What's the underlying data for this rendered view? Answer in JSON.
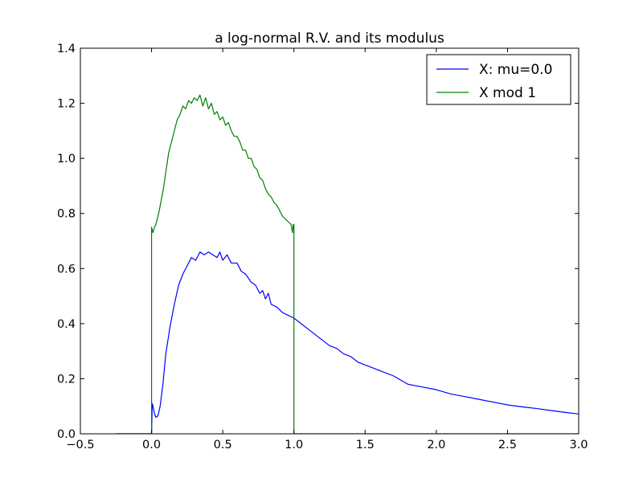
{
  "chart_data": {
    "type": "line",
    "title": "a log-normal R.V. and its modulus",
    "xlabel": "",
    "ylabel": "",
    "xlim": [
      -0.5,
      3.0
    ],
    "ylim": [
      0.0,
      1.4
    ],
    "xticks": [
      -0.5,
      0.0,
      0.5,
      1.0,
      1.5,
      2.0,
      2.5,
      3.0
    ],
    "xtick_labels": [
      "−0.5",
      "0.0",
      "0.5",
      "1.0",
      "1.5",
      "2.0",
      "2.5",
      "3.0"
    ],
    "yticks": [
      0.0,
      0.2,
      0.4,
      0.6,
      0.8,
      1.0,
      1.2,
      1.4
    ],
    "ytick_labels": [
      "0.0",
      "0.2",
      "0.4",
      "0.6",
      "0.8",
      "1.0",
      "1.2",
      "1.4"
    ],
    "grid": false,
    "legend_position": "top-right",
    "series": [
      {
        "name": "X: mu=0.0",
        "color": "#0000ff",
        "points": [
          [
            -0.25,
            0.0
          ],
          [
            0.0,
            0.0
          ],
          [
            0.005,
            0.11
          ],
          [
            0.01,
            0.1
          ],
          [
            0.02,
            0.075
          ],
          [
            0.03,
            0.06
          ],
          [
            0.045,
            0.065
          ],
          [
            0.06,
            0.1
          ],
          [
            0.08,
            0.18
          ],
          [
            0.1,
            0.29
          ],
          [
            0.13,
            0.39
          ],
          [
            0.16,
            0.47
          ],
          [
            0.19,
            0.54
          ],
          [
            0.22,
            0.58
          ],
          [
            0.25,
            0.61
          ],
          [
            0.28,
            0.64
          ],
          [
            0.31,
            0.63
          ],
          [
            0.34,
            0.66
          ],
          [
            0.37,
            0.65
          ],
          [
            0.4,
            0.66
          ],
          [
            0.43,
            0.65
          ],
          [
            0.46,
            0.64
          ],
          [
            0.48,
            0.66
          ],
          [
            0.5,
            0.63
          ],
          [
            0.53,
            0.65
          ],
          [
            0.56,
            0.62
          ],
          [
            0.6,
            0.62
          ],
          [
            0.63,
            0.59
          ],
          [
            0.66,
            0.58
          ],
          [
            0.7,
            0.55
          ],
          [
            0.73,
            0.54
          ],
          [
            0.76,
            0.51
          ],
          [
            0.78,
            0.52
          ],
          [
            0.8,
            0.49
          ],
          [
            0.82,
            0.51
          ],
          [
            0.84,
            0.47
          ],
          [
            0.88,
            0.46
          ],
          [
            0.92,
            0.44
          ],
          [
            0.96,
            0.43
          ],
          [
            1.0,
            0.42
          ],
          [
            1.05,
            0.4
          ],
          [
            1.1,
            0.38
          ],
          [
            1.15,
            0.36
          ],
          [
            1.2,
            0.34
          ],
          [
            1.25,
            0.32
          ],
          [
            1.3,
            0.31
          ],
          [
            1.35,
            0.29
          ],
          [
            1.4,
            0.28
          ],
          [
            1.45,
            0.26
          ],
          [
            1.5,
            0.25
          ],
          [
            1.55,
            0.24
          ],
          [
            1.6,
            0.23
          ],
          [
            1.7,
            0.21
          ],
          [
            1.8,
            0.18
          ],
          [
            1.9,
            0.17
          ],
          [
            2.0,
            0.16
          ],
          [
            2.1,
            0.145
          ],
          [
            2.2,
            0.135
          ],
          [
            2.3,
            0.125
          ],
          [
            2.4,
            0.115
          ],
          [
            2.5,
            0.105
          ],
          [
            2.6,
            0.098
          ],
          [
            2.7,
            0.092
          ],
          [
            2.8,
            0.085
          ],
          [
            2.9,
            0.078
          ],
          [
            3.0,
            0.072
          ]
        ]
      },
      {
        "name": "X mod 1",
        "color": "#008000",
        "points": [
          [
            -0.25,
            0.0
          ],
          [
            0.0,
            0.0
          ],
          [
            0.0,
            0.75
          ],
          [
            0.01,
            0.73
          ],
          [
            0.02,
            0.75
          ],
          [
            0.03,
            0.76
          ],
          [
            0.05,
            0.8
          ],
          [
            0.08,
            0.88
          ],
          [
            0.1,
            0.95
          ],
          [
            0.12,
            1.02
          ],
          [
            0.14,
            1.06
          ],
          [
            0.16,
            1.1
          ],
          [
            0.18,
            1.14
          ],
          [
            0.2,
            1.16
          ],
          [
            0.22,
            1.19
          ],
          [
            0.24,
            1.18
          ],
          [
            0.26,
            1.21
          ],
          [
            0.28,
            1.2
          ],
          [
            0.3,
            1.22
          ],
          [
            0.32,
            1.21
          ],
          [
            0.34,
            1.23
          ],
          [
            0.36,
            1.19
          ],
          [
            0.38,
            1.22
          ],
          [
            0.4,
            1.18
          ],
          [
            0.42,
            1.2
          ],
          [
            0.44,
            1.16
          ],
          [
            0.46,
            1.17
          ],
          [
            0.48,
            1.14
          ],
          [
            0.5,
            1.15
          ],
          [
            0.52,
            1.12
          ],
          [
            0.54,
            1.13
          ],
          [
            0.56,
            1.1
          ],
          [
            0.58,
            1.08
          ],
          [
            0.6,
            1.08
          ],
          [
            0.62,
            1.06
          ],
          [
            0.64,
            1.03
          ],
          [
            0.66,
            1.03
          ],
          [
            0.68,
            1.0
          ],
          [
            0.7,
            1.0
          ],
          [
            0.72,
            0.97
          ],
          [
            0.74,
            0.96
          ],
          [
            0.76,
            0.93
          ],
          [
            0.78,
            0.92
          ],
          [
            0.8,
            0.89
          ],
          [
            0.82,
            0.87
          ],
          [
            0.84,
            0.86
          ],
          [
            0.86,
            0.84
          ],
          [
            0.88,
            0.83
          ],
          [
            0.9,
            0.81
          ],
          [
            0.92,
            0.79
          ],
          [
            0.94,
            0.78
          ],
          [
            0.96,
            0.77
          ],
          [
            0.98,
            0.76
          ],
          [
            0.99,
            0.73
          ],
          [
            0.995,
            0.76
          ],
          [
            1.0,
            0.76
          ],
          [
            1.0,
            0.0
          ],
          [
            3.0,
            0.0
          ]
        ]
      }
    ]
  }
}
